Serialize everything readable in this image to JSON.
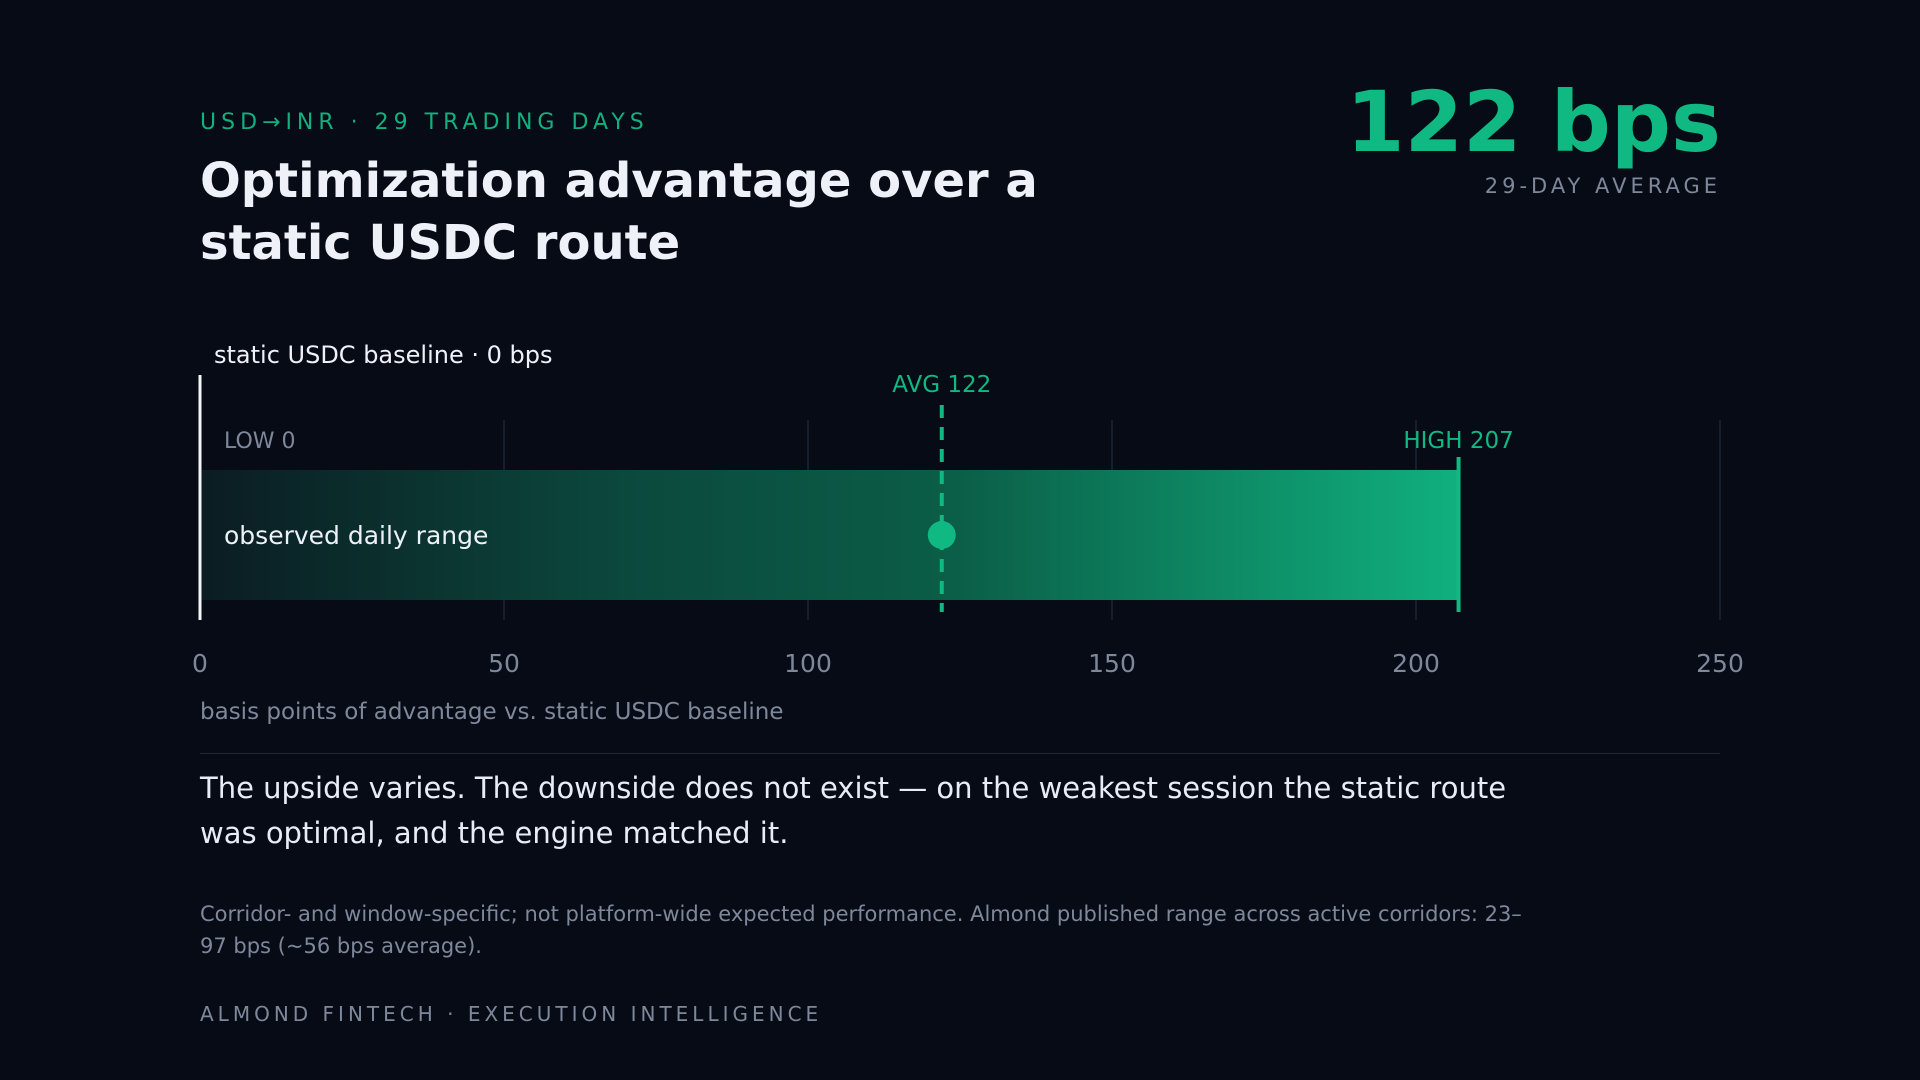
{
  "header": {
    "eyebrow": "USD→INR · 29 TRADING DAYS",
    "title": "Optimization advantage over a static USDC route"
  },
  "kpi": {
    "value": "122 bps",
    "label": "29-DAY AVERAGE"
  },
  "chart_data": {
    "type": "bar",
    "orientation": "horizontal",
    "xlim": [
      0,
      250
    ],
    "xticks": [
      0,
      50,
      100,
      150,
      200,
      250
    ],
    "xlabel": "basis points of advantage vs. static USDC baseline",
    "baseline_label": "static USDC baseline · 0 bps",
    "range": {
      "label": "observed daily range",
      "low": 0,
      "high": 207
    },
    "average": 122,
    "annotations": {
      "low": "LOW 0",
      "high": "HIGH 207",
      "avg": "AVG 122"
    },
    "grid": true,
    "colors": {
      "accent": "#10b981",
      "range_start": "#0b1c22",
      "range_end": "#10b07e",
      "grid": "#1f2633",
      "baseline": "#f2f4f8"
    }
  },
  "body": {
    "headline": "The upside varies. The downside does not exist — on the weakest session the static route was optimal, and the engine matched it.",
    "footnote": "Corridor- and window-specific; not platform-wide expected performance. Almond published range across active corridors: 23–97 bps (~56 bps average).",
    "brand": "ALMOND FINTECH · EXECUTION INTELLIGENCE"
  }
}
